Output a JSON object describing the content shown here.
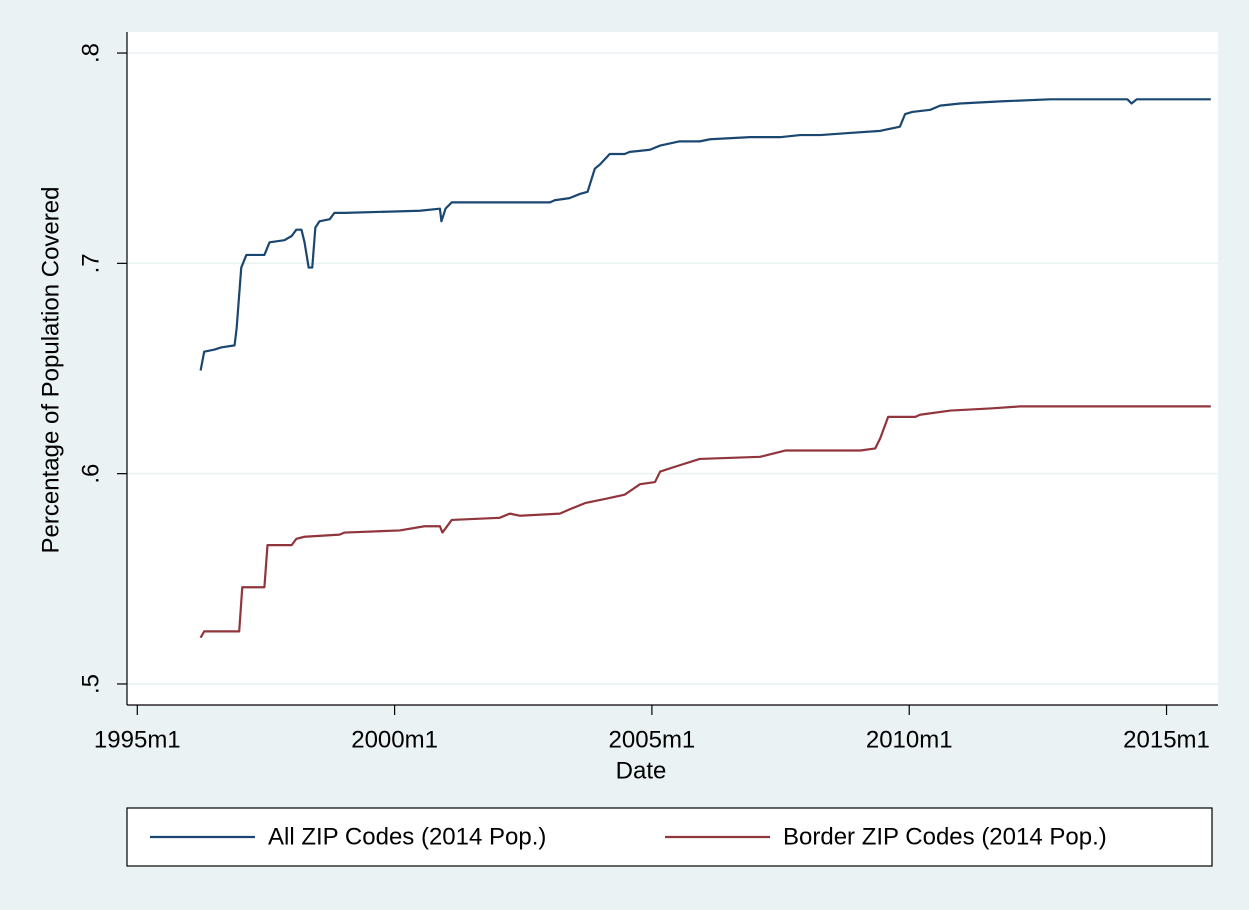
{
  "chart_data": {
    "type": "line",
    "xlabel": "Date",
    "ylabel": "Percentage of Population Covered",
    "xlim": [
      1994.8,
      2016.0
    ],
    "ylim": [
      0.49,
      0.81
    ],
    "xticks": [
      {
        "value": 1995,
        "label": "1995m1"
      },
      {
        "value": 2000,
        "label": "2000m1"
      },
      {
        "value": 2005,
        "label": "2005m1"
      },
      {
        "value": 2010,
        "label": "2010m1"
      },
      {
        "value": 2015,
        "label": "2015m1"
      }
    ],
    "yticks": [
      {
        "value": 0.5,
        "label": ".5"
      },
      {
        "value": 0.6,
        "label": ".6"
      },
      {
        "value": 0.7,
        "label": ".7"
      },
      {
        "value": 0.8,
        "label": ".8"
      }
    ],
    "grid": true,
    "series": [
      {
        "name": "All ZIP Codes (2014 Pop.)",
        "color": "#1a476f",
        "x": [
          1996.23,
          1996.3,
          1996.5,
          1996.63,
          1996.89,
          1996.93,
          1997.02,
          1997.12,
          1997.47,
          1997.57,
          1997.86,
          1998.0,
          1998.09,
          1998.19,
          1998.25,
          1998.33,
          1998.4,
          1998.46,
          1998.54,
          1998.74,
          1998.83,
          1999.03,
          2000.49,
          2000.88,
          2000.91,
          2000.99,
          2001.11,
          2002.04,
          2003.02,
          2003.11,
          2003.4,
          2003.6,
          2003.75,
          2003.89,
          2003.99,
          2004.18,
          2004.47,
          2004.57,
          2004.96,
          2005.16,
          2005.35,
          2005.54,
          2005.93,
          2006.13,
          2006.91,
          2007.49,
          2007.88,
          2008.27,
          2008.85,
          2009.44,
          2009.82,
          2009.92,
          2010.06,
          2010.41,
          2010.6,
          2010.99,
          2011.77,
          2012.74,
          2014.24,
          2014.32,
          2014.42,
          2015.86
        ],
        "values": [
          0.649,
          0.658,
          0.659,
          0.66,
          0.661,
          0.669,
          0.698,
          0.704,
          0.704,
          0.71,
          0.711,
          0.713,
          0.716,
          0.716,
          0.71,
          0.698,
          0.698,
          0.717,
          0.72,
          0.721,
          0.724,
          0.724,
          0.725,
          0.726,
          0.72,
          0.726,
          0.729,
          0.729,
          0.729,
          0.73,
          0.731,
          0.733,
          0.734,
          0.745,
          0.747,
          0.752,
          0.752,
          0.753,
          0.754,
          0.756,
          0.757,
          0.758,
          0.758,
          0.759,
          0.76,
          0.76,
          0.761,
          0.761,
          0.762,
          0.763,
          0.765,
          0.771,
          0.772,
          0.773,
          0.775,
          0.776,
          0.777,
          0.778,
          0.778,
          0.776,
          0.778,
          0.778
        ]
      },
      {
        "name": "Border ZIP Codes (2014 Pop.)",
        "color": "#90353b",
        "x": [
          1996.23,
          1996.3,
          1996.98,
          1997.04,
          1997.14,
          1997.47,
          1997.53,
          1998.0,
          1998.09,
          1998.25,
          1998.93,
          1999.03,
          2000.1,
          2000.58,
          2000.88,
          2000.93,
          2001.11,
          2002.04,
          2002.24,
          2002.43,
          2003.21,
          2003.4,
          2003.7,
          2004.09,
          2004.47,
          2004.77,
          2005.06,
          2005.16,
          2005.54,
          2005.93,
          2007.1,
          2007.59,
          2009.05,
          2009.34,
          2009.44,
          2009.59,
          2010.12,
          2010.21,
          2010.8,
          2011.58,
          2012.16,
          2014.4,
          2015.86
        ],
        "values": [
          0.522,
          0.525,
          0.525,
          0.546,
          0.546,
          0.546,
          0.566,
          0.566,
          0.569,
          0.57,
          0.571,
          0.572,
          0.573,
          0.575,
          0.575,
          0.572,
          0.578,
          0.579,
          0.581,
          0.58,
          0.581,
          0.583,
          0.586,
          0.588,
          0.59,
          0.595,
          0.596,
          0.601,
          0.604,
          0.607,
          0.608,
          0.611,
          0.611,
          0.612,
          0.617,
          0.627,
          0.627,
          0.628,
          0.63,
          0.631,
          0.632,
          0.632,
          0.632
        ]
      }
    ]
  }
}
